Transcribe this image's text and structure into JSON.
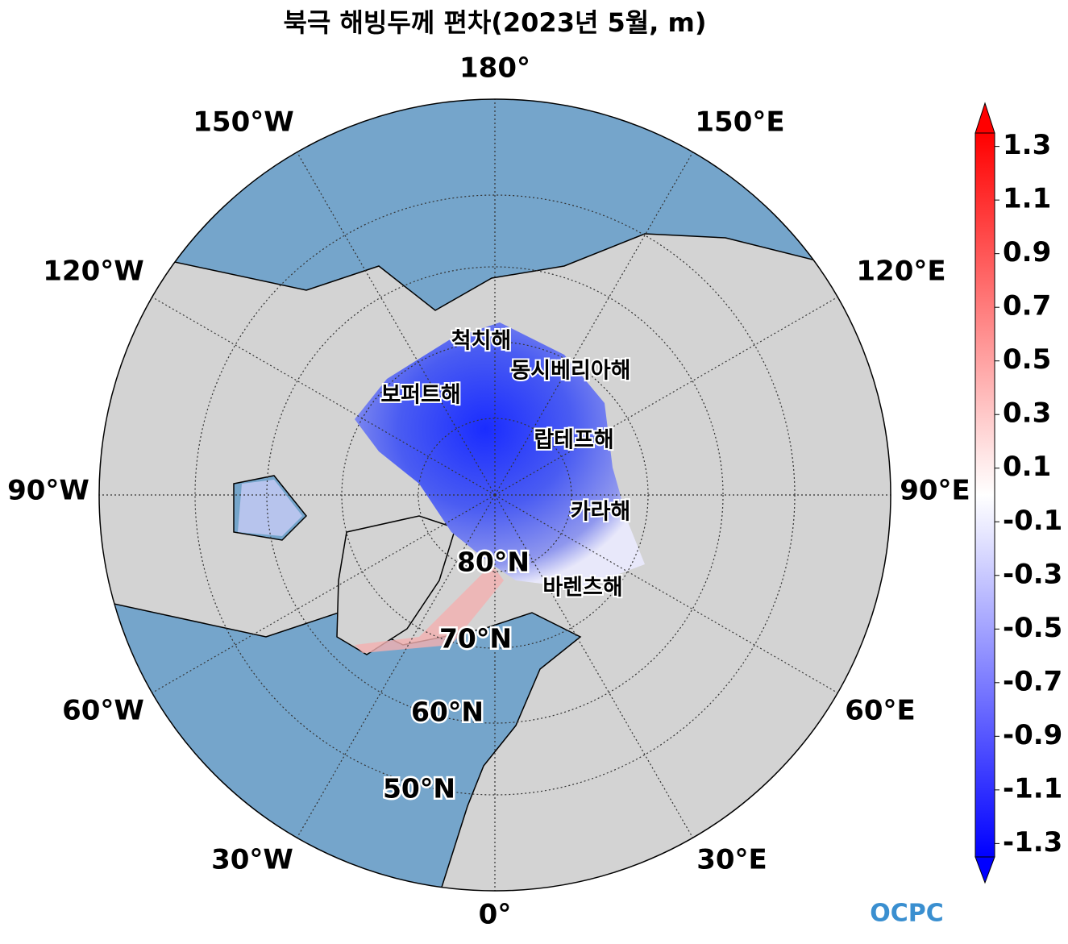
{
  "title": "북극 해빙두께 편차(2023년 5월, m)",
  "map": {
    "longitude_labels": [
      "180°",
      "150°E",
      "120°E",
      "90°E",
      "60°E",
      "30°E",
      "0°",
      "30°W",
      "60°W",
      "90°W",
      "120°W",
      "150°W"
    ],
    "latitude_labels": [
      "80°N",
      "70°N",
      "60°N",
      "50°N"
    ],
    "sea_labels": [
      "척치해",
      "동시베리아해",
      "보퍼트해",
      "랍테프해",
      "카라해",
      "바렌츠해"
    ]
  },
  "colorbar": {
    "lim": [
      -1.35,
      1.35
    ],
    "ticks": [
      1.3,
      1.1,
      0.9,
      0.7,
      0.5,
      0.3,
      0.1,
      -0.1,
      -0.3,
      -0.5,
      -0.7,
      -0.9,
      -1.1,
      -1.3
    ]
  },
  "logo": "OCPC"
}
